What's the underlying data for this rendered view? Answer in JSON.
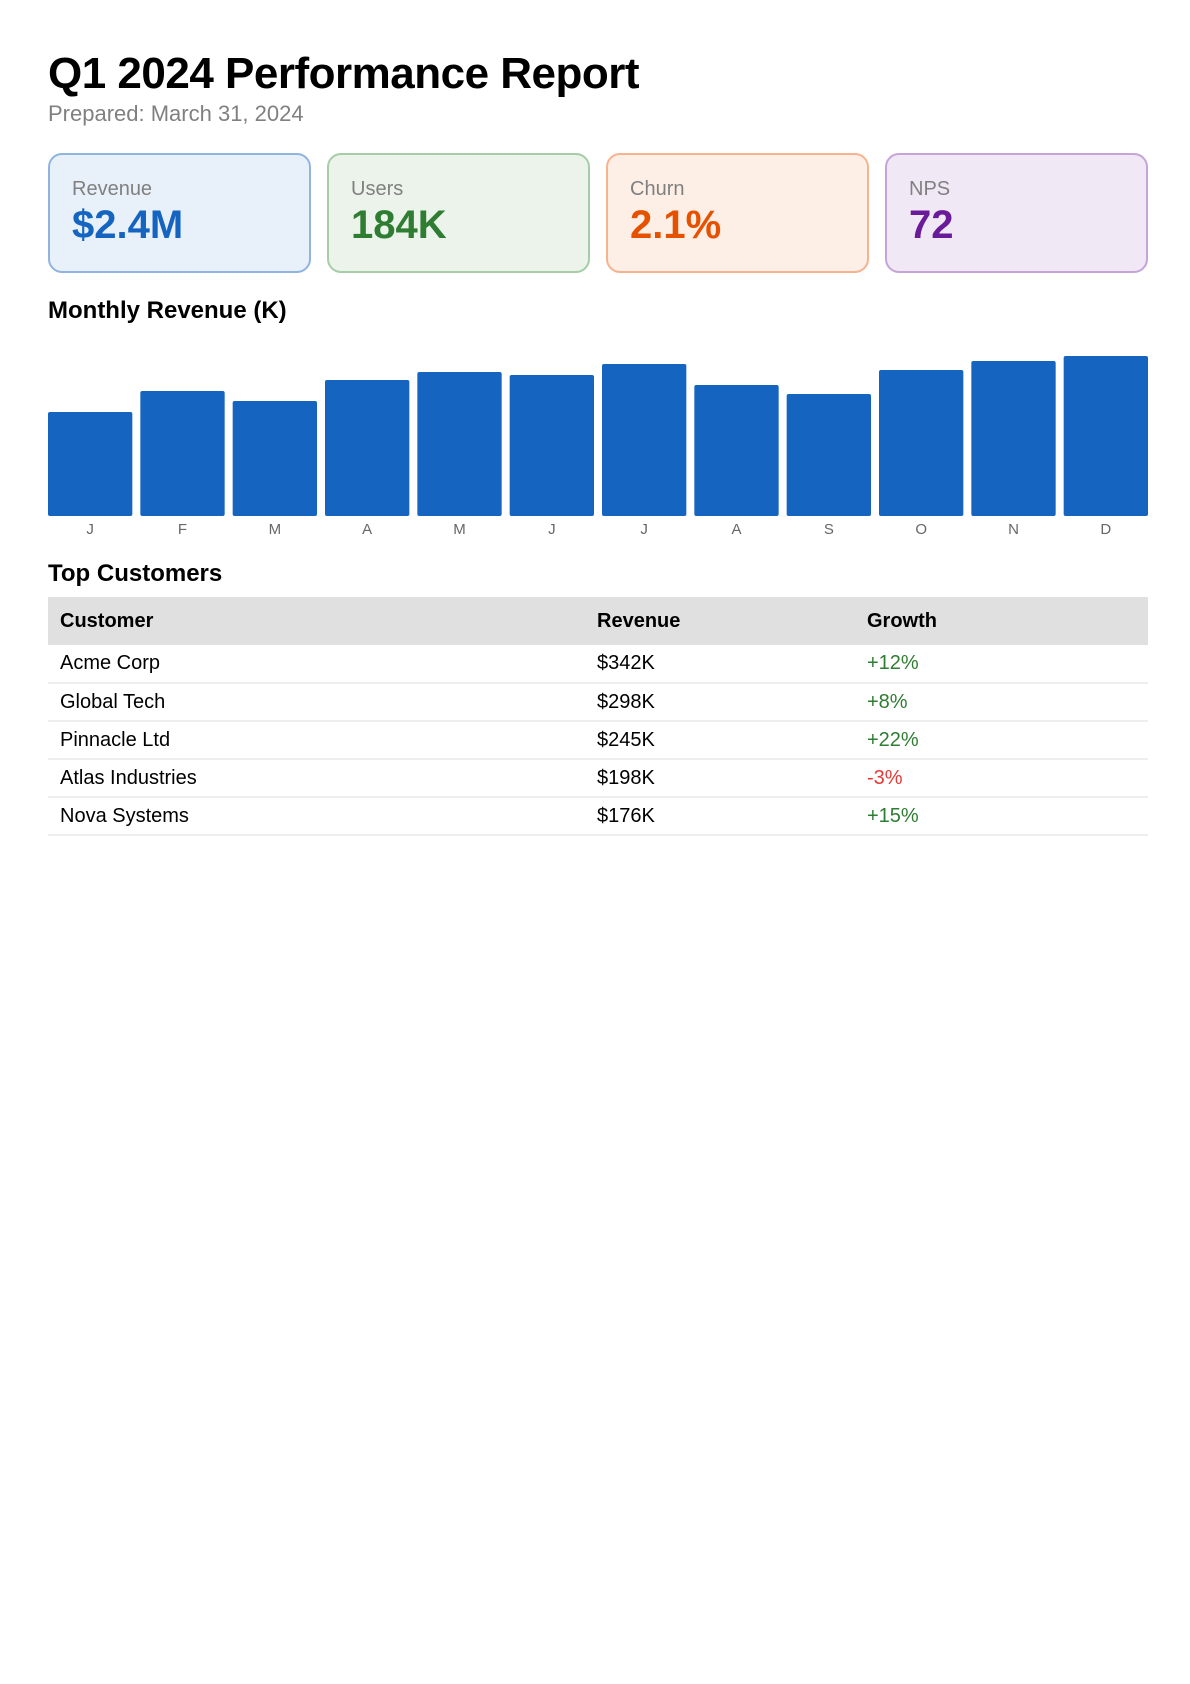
{
  "header": {
    "title": "Q1 2024 Performance Report",
    "subtitle": "Prepared: March 31, 2024"
  },
  "kpis": [
    {
      "label": "Revenue",
      "value": "$2.4M",
      "accent": "#1565c0",
      "bg": "#e8f0fa",
      "border": "#90b4e0"
    },
    {
      "label": "Users",
      "value": "184K",
      "accent": "#2e7d32",
      "bg": "#ebf3ea",
      "border": "#a6cda6"
    },
    {
      "label": "Churn",
      "value": "2.1%",
      "accent": "#e65100",
      "bg": "#fdeee6",
      "border": "#f5b48f"
    },
    {
      "label": "NPS",
      "value": "72",
      "accent": "#6a1b9a",
      "bg": "#f1e8f5",
      "border": "#c6a4d8"
    }
  ],
  "chart_section": {
    "title": "Monthly Revenue (K)"
  },
  "chart_data": {
    "type": "bar",
    "title": "Monthly Revenue (K)",
    "categories": [
      "J",
      "F",
      "M",
      "A",
      "M",
      "J",
      "J",
      "A",
      "S",
      "O",
      "N",
      "D"
    ],
    "values": [
      104,
      125,
      115,
      136,
      144,
      141,
      152,
      131,
      122,
      146,
      155,
      160
    ],
    "ylim": [
      0,
      160
    ],
    "color": "#1565c0",
    "xlabel": "",
    "ylabel": ""
  },
  "customers": {
    "title": "Top Customers",
    "columns": [
      "Customer",
      "Revenue",
      "Growth"
    ],
    "rows": [
      {
        "customer": "Acme Corp",
        "revenue": "$342K",
        "growth": "+12%",
        "positive": true
      },
      {
        "customer": "Global Tech",
        "revenue": "$298K",
        "growth": "+8%",
        "positive": true
      },
      {
        "customer": "Pinnacle Ltd",
        "revenue": "$245K",
        "growth": "+22%",
        "positive": true
      },
      {
        "customer": "Atlas Industries",
        "revenue": "$198K",
        "growth": "-3%",
        "positive": false
      },
      {
        "customer": "Nova Systems",
        "revenue": "$176K",
        "growth": "+15%",
        "positive": true
      }
    ]
  }
}
